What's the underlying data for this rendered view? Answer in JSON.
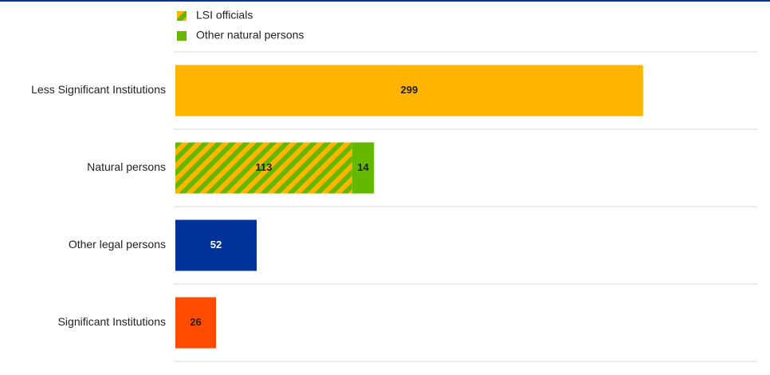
{
  "chart_data": {
    "type": "bar",
    "orientation": "horizontal",
    "categories": [
      "Less Significant Institutions",
      "Natural persons",
      "Other legal persons",
      "Significant Institutions"
    ],
    "values": [
      299,
      null,
      52,
      26
    ],
    "colors": [
      "#ffb400",
      null,
      "#003299",
      "#ff4b00"
    ],
    "series": [
      {
        "name": "LSI officials",
        "color": "#65b800",
        "pattern": "stripes",
        "pattern_color": "#ffb400",
        "values": [
          null,
          113,
          null,
          null
        ]
      },
      {
        "name": "Other natural persons",
        "color": "#65b800",
        "values": [
          null,
          14,
          null,
          null
        ]
      }
    ],
    "xlim": [
      0,
      372
    ]
  }
}
